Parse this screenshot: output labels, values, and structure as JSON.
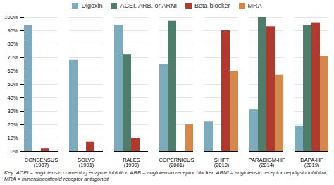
{
  "chart_data": {
    "type": "bar",
    "categories": [
      "CONSENSUS (1987)",
      "SOLVD (1991)",
      "RALES (1999)",
      "COPERNICUS (2001)",
      "SHIFT (2010)",
      "PARADIGM-HF (2014)",
      "DAPA-HF (2019)"
    ],
    "series": [
      {
        "name": "Digoxin",
        "color": "#7aacbe",
        "values": [
          94,
          68,
          94,
          65,
          22,
          31,
          19
        ]
      },
      {
        "name": "ACEI, ARB, or ARNI",
        "color": "#4e7d6b",
        "values": [
          null,
          null,
          72,
          97,
          null,
          100,
          94
        ]
      },
      {
        "name": "Beta-blocker",
        "color": "#b03a2e",
        "values": [
          2,
          7,
          10,
          null,
          90,
          93,
          96
        ]
      },
      {
        "name": "MRA",
        "color": "#d4884b",
        "values": [
          null,
          null,
          null,
          20,
          60,
          57,
          71
        ]
      }
    ],
    "ylim": [
      0,
      100
    ],
    "yticks": [
      {
        "value": 0,
        "label": "0%"
      },
      {
        "value": 10,
        "label": "10%"
      },
      {
        "value": 20,
        "label": "20%"
      },
      {
        "value": 30,
        "label": "30%"
      },
      {
        "value": 40,
        "label": "40%"
      },
      {
        "value": 50,
        "label": "50%"
      },
      {
        "value": 60,
        "label": "60%"
      },
      {
        "value": 70,
        "label": "70%"
      },
      {
        "value": 80,
        "label": "80%"
      },
      {
        "value": 90,
        "label": "90%"
      },
      {
        "value": 100,
        "label": "100%"
      }
    ],
    "grid": true,
    "legend": "top",
    "annotations": [
      "Key: ACEI = angiotensin converting enzyme inhibitor; ARB = angiotensin receptor blocker; ARNI = angiotensin receptor neprilysin inhibitor;",
      "MRA = mineralocorticoid receptor antagonist"
    ]
  }
}
